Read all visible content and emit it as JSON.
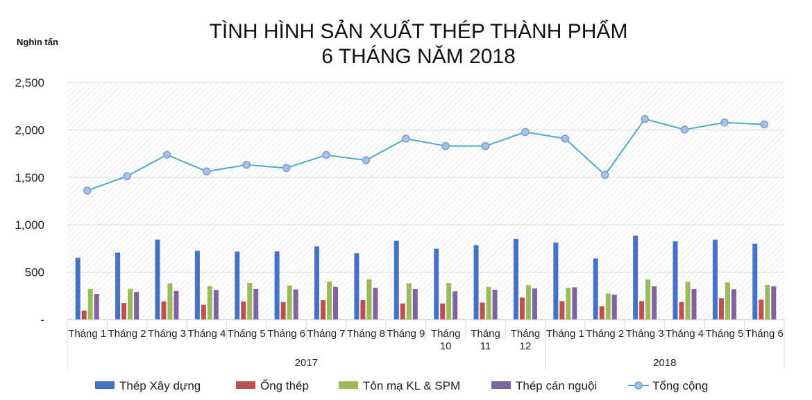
{
  "chart_data": {
    "type": "bar",
    "title_lines": [
      "TÌNH HÌNH SẢN XUẤT THÉP THÀNH PHẨM",
      "6 THÁNG NĂM 2018"
    ],
    "ylabel": "Nghìn tấn",
    "ylim": [
      0,
      2500
    ],
    "y_ticks": [
      "-",
      "500",
      "1,000",
      "1,500",
      "2,000",
      "2,500"
    ],
    "y_tick_values": [
      0,
      500,
      1000,
      1500,
      2000,
      2500
    ],
    "categories": [
      [
        "Tháng 1"
      ],
      [
        "Tháng 2"
      ],
      [
        "Tháng 3"
      ],
      [
        "Tháng 4"
      ],
      [
        "Tháng 5"
      ],
      [
        "Tháng 6"
      ],
      [
        "Tháng 7"
      ],
      [
        "Tháng 8"
      ],
      [
        "Tháng 9"
      ],
      [
        "Tháng",
        "10"
      ],
      [
        "Tháng",
        "11"
      ],
      [
        "Tháng",
        "12"
      ],
      [
        "Tháng 1"
      ],
      [
        "Tháng 2"
      ],
      [
        "Tháng 3"
      ],
      [
        "Tháng 4"
      ],
      [
        "Tháng 5"
      ],
      [
        "Tháng 6"
      ]
    ],
    "groups": [
      {
        "label": "2017",
        "count": 12
      },
      {
        "label": "2018",
        "count": 6
      }
    ],
    "series": [
      {
        "name": "Thép Xây dựng",
        "type": "bar",
        "color": "#4472C4",
        "values": [
          652,
          706,
          843,
          726,
          718,
          720,
          772,
          700,
          831,
          748,
          785,
          850,
          813,
          645,
          885,
          825,
          842,
          800
        ]
      },
      {
        "name": "Ống thép",
        "type": "bar",
        "color": "#C0504D",
        "values": [
          95,
          175,
          192,
          155,
          190,
          185,
          205,
          205,
          170,
          170,
          180,
          232,
          195,
          140,
          195,
          185,
          225,
          210
        ]
      },
      {
        "name": "Tôn mạ KL & SPM",
        "type": "bar",
        "color": "#9BBB59",
        "values": [
          322,
          325,
          382,
          352,
          388,
          358,
          402,
          422,
          383,
          385,
          345,
          363,
          335,
          275,
          422,
          398,
          392,
          365
        ]
      },
      {
        "name": "Thép cán nguội",
        "type": "bar",
        "color": "#8064A2",
        "values": [
          270,
          292,
          302,
          312,
          322,
          318,
          345,
          335,
          322,
          298,
          315,
          328,
          340,
          262,
          350,
          322,
          320,
          350
        ]
      },
      {
        "name": "Tổng cộng",
        "type": "line",
        "color": "#4BACC6",
        "values": [
          1360,
          1512,
          1738,
          1562,
          1632,
          1598,
          1735,
          1680,
          1908,
          1830,
          1830,
          1978,
          1908,
          1525,
          2115,
          2003,
          2078,
          2058
        ]
      }
    ],
    "grid": true,
    "legend_position": "bottom"
  }
}
